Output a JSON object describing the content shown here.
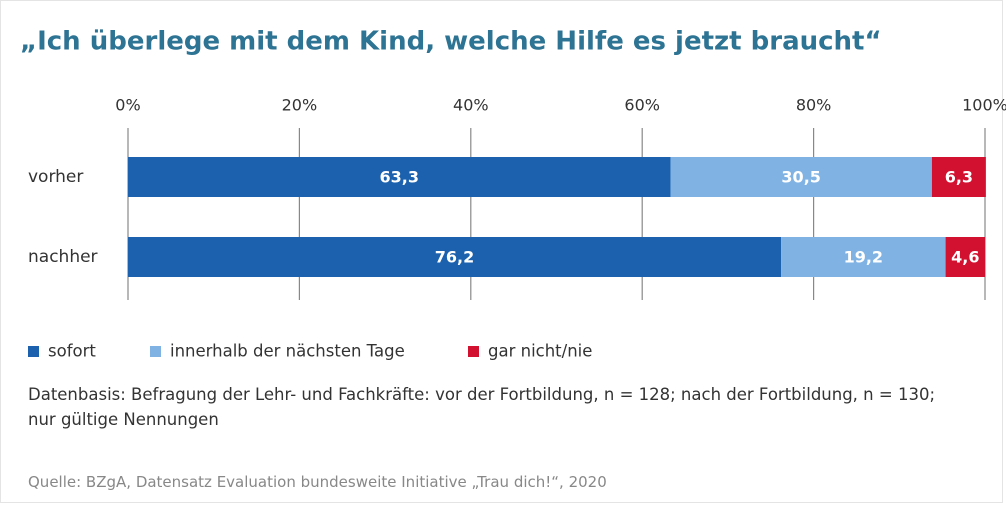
{
  "chart_data": {
    "type": "stacked-barh",
    "title": "„Ich überlege mit dem Kind, welche Hilfe es jetzt braucht“",
    "categories": [
      "vorher",
      "nachher"
    ],
    "series": [
      {
        "name": "sofort",
        "color": "#1b61ad",
        "values": [
          63.3,
          76.2
        ],
        "value_labels": [
          "63,3",
          "76,2"
        ]
      },
      {
        "name": "innerhalb der nächsten Tage",
        "color": "#80b3e4",
        "values": [
          30.5,
          19.2
        ],
        "value_labels": [
          "30,5",
          "19,2"
        ]
      },
      {
        "name": "gar nicht/nie",
        "color": "#d2102f",
        "values": [
          6.3,
          4.6
        ],
        "value_labels": [
          "6,3",
          "4,6"
        ]
      }
    ],
    "xlim": [
      0,
      100
    ],
    "xticks": [
      {
        "value": 0,
        "label": "0%"
      },
      {
        "value": 20,
        "label": "20%"
      },
      {
        "value": 40,
        "label": "40%"
      },
      {
        "value": 60,
        "label": "60%"
      },
      {
        "value": 80,
        "label": "80%"
      },
      {
        "value": 100,
        "label": "100%"
      }
    ],
    "grid": true,
    "note": "Datenbasis: Befragung der Lehr- und Fachkräfte: vor der Fortbildung, n = 128; nach der Fortbildung, n = 130; nur gültige Nennungen",
    "source": "Quelle: BZgA, Datensatz Evaluation bundesweite Initiative „Trau dich!“, 2020"
  }
}
